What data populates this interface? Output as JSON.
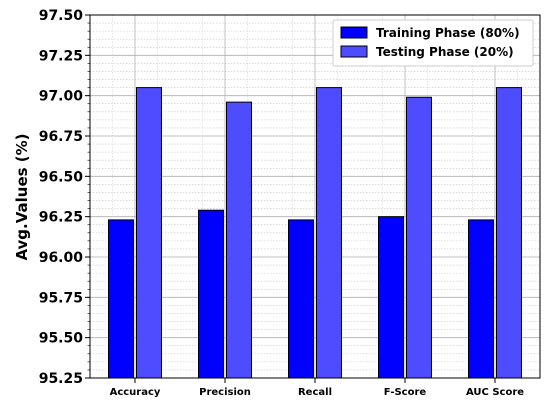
{
  "chart_data": {
    "type": "bar",
    "categories": [
      "Accuracy",
      "Precision",
      "Recall",
      "F-Score",
      "AUC Score"
    ],
    "series": [
      {
        "name": "Training Phase (80%)",
        "values": [
          96.23,
          96.29,
          96.23,
          96.25,
          96.23
        ],
        "color": "#0000ff"
      },
      {
        "name": "Testing Phase (20%)",
        "values": [
          97.05,
          96.96,
          97.05,
          96.99,
          97.05
        ],
        "color": "#4d4dff"
      }
    ],
    "xlabel": "",
    "ylabel": "Avg.Values (%)",
    "ylim": [
      95.25,
      97.5
    ],
    "yticks": [
      "95.25",
      "95.50",
      "95.75",
      "96.00",
      "96.25",
      "96.50",
      "96.75",
      "97.00",
      "97.25",
      "97.50"
    ],
    "grid": true,
    "legend_position": "top-right"
  }
}
